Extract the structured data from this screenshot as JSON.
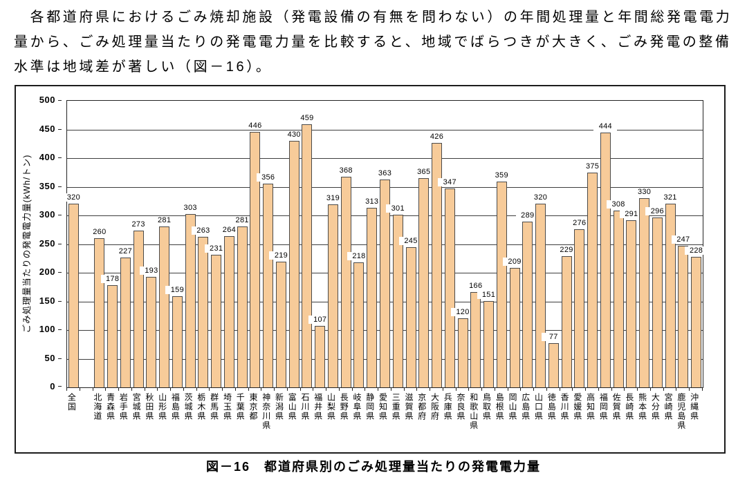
{
  "paragraph": {
    "lines": [
      "　各都道府県におけるごみ焼却施設（発電設備の有無を問わない）の年間処理量と年間総発電電力",
      "量から、ごみ処理量当たりの発電電力量を比較すると、地域でばらつきが大きく、ごみ発電の整備",
      "水準は地域差が著しい（図－16）。"
    ]
  },
  "figure": {
    "caption": "図－16　都道府県別のごみ処理量当たりの発電電力量"
  },
  "chart_data": {
    "type": "bar",
    "title": "",
    "xlabel": "",
    "ylabel": "ごみ処理量当たりの発電電力量(kWh/トン)",
    "ylim": [
      0,
      500
    ],
    "ytick_step": 50,
    "grid": true,
    "legend": "none",
    "gap_after_first_category": true,
    "categories": [
      "全国",
      "北海道",
      "青森県",
      "岩手県",
      "宮城県",
      "秋田県",
      "山形県",
      "福島県",
      "茨城県",
      "栃木県",
      "群馬県",
      "埼玉県",
      "千葉県",
      "東京都",
      "神奈川県",
      "新潟県",
      "富山県",
      "石川県",
      "福井県",
      "山梨県",
      "長野県",
      "岐阜県",
      "静岡県",
      "愛知県",
      "三重県",
      "滋賀県",
      "京都府",
      "大阪府",
      "兵庫県",
      "奈良県",
      "和歌山県",
      "鳥取県",
      "島根県",
      "岡山県",
      "広島県",
      "山口県",
      "徳島県",
      "香川県",
      "愛媛県",
      "高知県",
      "福岡県",
      "佐賀県",
      "長崎県",
      "熊本県",
      "大分県",
      "宮崎県",
      "鹿児島県",
      "沖縄県"
    ],
    "values": [
      320,
      260,
      178,
      227,
      273,
      193,
      281,
      159,
      303,
      263,
      231,
      264,
      281,
      446,
      356,
      219,
      430,
      459,
      107,
      319,
      368,
      218,
      313,
      363,
      301,
      245,
      365,
      426,
      347,
      120,
      166,
      151,
      359,
      209,
      289,
      320,
      77,
      229,
      276,
      375,
      444,
      308,
      291,
      330,
      296,
      321,
      247,
      228
    ],
    "colors": {
      "bar_fill": "#F7CB99",
      "bar_border": "#4a4a4a",
      "grid_line": "#3c3c3c",
      "axis_line": "#222222",
      "frame_border": "#1c1c1c",
      "text": "#000000"
    }
  }
}
